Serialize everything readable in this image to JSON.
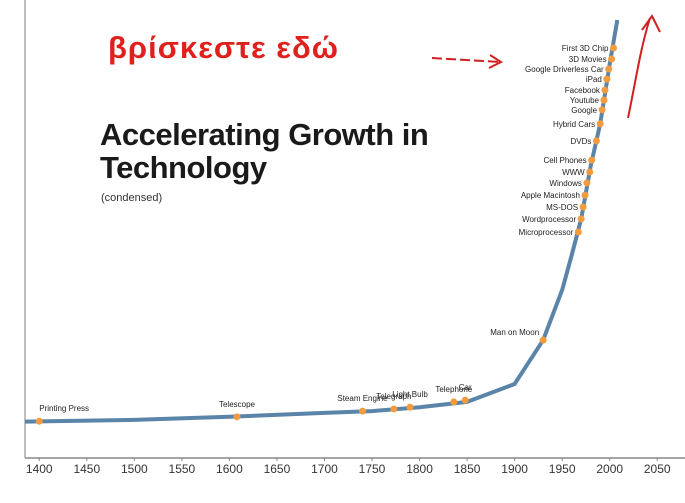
{
  "chart_data": {
    "type": "line",
    "title": "Accelerating Growth in Technology",
    "subtitle": "(condensed)",
    "annotation": "βρίσκεστε εδώ",
    "color": "#5a84a8",
    "point_color": "#f29b3f",
    "x": [
      1385,
      1500,
      1600,
      1700,
      1750,
      1800,
      1850,
      1900,
      1930,
      1950,
      1960,
      1970,
      1980,
      1990,
      2000,
      2008
    ],
    "values": [
      8.3,
      8.7,
      9.4,
      10.3,
      10.7,
      11.6,
      12.8,
      16.9,
      26.9,
      38.4,
      46.3,
      54.6,
      66.7,
      76.3,
      89.9,
      100
    ],
    "points": [
      {
        "label": "Printing Press",
        "x": 1400,
        "y": 8.4
      },
      {
        "label": "Telescope",
        "x": 1608,
        "y": 9.4
      },
      {
        "label": "Steam Engine",
        "x": 1740,
        "y": 10.7
      },
      {
        "label": "Telegraph",
        "x": 1773,
        "y": 11.2
      },
      {
        "label": "Light Bulb",
        "x": 1790,
        "y": 11.6
      },
      {
        "label": "Telephone",
        "x": 1836,
        "y": 12.8
      },
      {
        "label": "Car",
        "x": 1848,
        "y": 13.2
      },
      {
        "label": "Man on Moon",
        "x": 1930,
        "y": 26.9
      },
      {
        "label": "Microprocessor",
        "x": 1967,
        "y": 51.6
      },
      {
        "label": "Wordprocessor",
        "x": 1970,
        "y": 54.6
      },
      {
        "label": "MS-DOS",
        "x": 1972,
        "y": 57.3
      },
      {
        "label": "Apple Macintosh",
        "x": 1974,
        "y": 60.0
      },
      {
        "label": "Windows",
        "x": 1976,
        "y": 62.8
      },
      {
        "label": "WWW",
        "x": 1979,
        "y": 65.3
      },
      {
        "label": "Cell Phones",
        "x": 1981,
        "y": 68.0
      },
      {
        "label": "DVDs",
        "x": 1986,
        "y": 72.4
      },
      {
        "label": "Hybrid Cars",
        "x": 1990,
        "y": 76.3
      },
      {
        "label": "Google",
        "x": 1992,
        "y": 79.5
      },
      {
        "label": "Youtube",
        "x": 1994,
        "y": 81.7
      },
      {
        "label": "Facebook",
        "x": 1995,
        "y": 84.0
      },
      {
        "label": "iPad",
        "x": 1997,
        "y": 86.5
      },
      {
        "label": "Google Driverless Car",
        "x": 1999,
        "y": 88.8
      },
      {
        "label": "3D Movies",
        "x": 2002,
        "y": 91.1
      },
      {
        "label": "First 3D Chip",
        "x": 2004,
        "y": 93.6
      }
    ],
    "xlim": [
      1385,
      2075
    ],
    "ylim": [
      0,
      100
    ],
    "xticks": [
      1400,
      1450,
      1500,
      1550,
      1600,
      1650,
      1700,
      1750,
      1800,
      1850,
      1900,
      1950,
      2000,
      2050
    ]
  }
}
